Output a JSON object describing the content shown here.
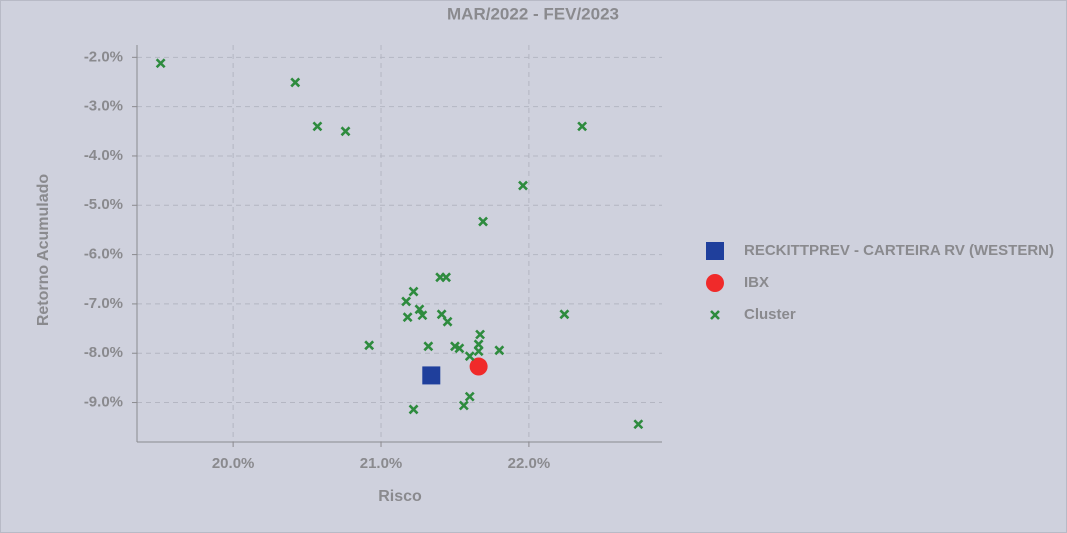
{
  "chart_data": {
    "type": "scatter",
    "title": "MAR/2022 - FEV/2023",
    "xlabel": "Risco",
    "ylabel": "Retorno Acumulado",
    "xlim": [
      19.35,
      22.9
    ],
    "ylim": [
      -9.8,
      -1.75
    ],
    "xticks": [
      {
        "value": 20,
        "label": "20.0%"
      },
      {
        "value": 21,
        "label": "21.0%"
      },
      {
        "value": 22,
        "label": "22.0%"
      }
    ],
    "yticks": [
      {
        "value": -2,
        "label": "-2.0%"
      },
      {
        "value": -3,
        "label": "-3.0%"
      },
      {
        "value": -4,
        "label": "-4.0%"
      },
      {
        "value": -5,
        "label": "-5.0%"
      },
      {
        "value": -6,
        "label": "-6.0%"
      },
      {
        "value": -7,
        "label": "-7.0%"
      },
      {
        "value": -8,
        "label": "-8.0%"
      },
      {
        "value": -9,
        "label": "-9.0%"
      }
    ],
    "grid": true,
    "legend": "right",
    "series": [
      {
        "name": "RECKITTPREV - CARTEIRA RV (WESTERN)",
        "color": "#1f3f9c",
        "marker": "square",
        "x": [
          21.34
        ],
        "values": [
          -8.45
        ]
      },
      {
        "name": "IBX",
        "color": "#f02a2a",
        "marker": "circle",
        "x": [
          21.66
        ],
        "values": [
          -8.27
        ]
      },
      {
        "name": "Cluster",
        "color": "#2e8b3e",
        "marker": "x",
        "x": [
          19.51,
          20.42,
          20.57,
          20.76,
          22.36,
          21.96,
          21.69,
          21.4,
          21.44,
          21.22,
          21.17,
          21.26,
          21.28,
          21.18,
          21.41,
          21.45,
          22.24,
          21.67,
          21.66,
          20.92,
          21.32,
          21.5,
          21.53,
          21.66,
          21.8,
          21.6,
          21.6,
          21.56,
          21.22,
          22.74
        ],
        "values": [
          -2.12,
          -2.51,
          -3.4,
          -3.5,
          -3.4,
          -4.6,
          -5.33,
          -6.46,
          -6.46,
          -6.75,
          -6.95,
          -7.11,
          -7.23,
          -7.27,
          -7.21,
          -7.36,
          -7.21,
          -7.62,
          -7.82,
          -7.84,
          -7.86,
          -7.86,
          -7.9,
          -7.96,
          -7.94,
          -8.06,
          -8.88,
          -9.06,
          -9.14,
          -9.44
        ]
      }
    ]
  }
}
